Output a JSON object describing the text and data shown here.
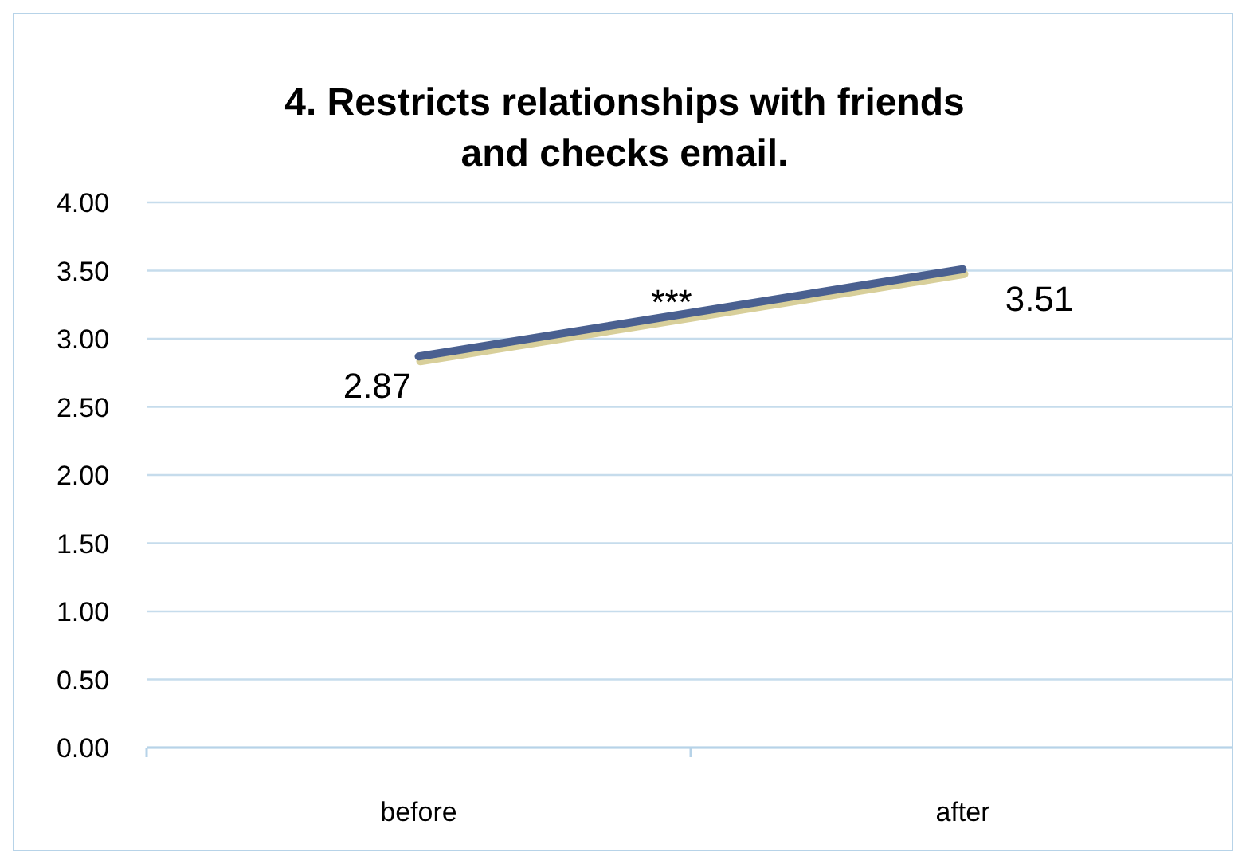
{
  "chart_data": {
    "type": "line",
    "title": "4. Restricts relationships with friends and checks email.",
    "categories": [
      "before",
      "after"
    ],
    "series": [
      {
        "color": "#4a6090",
        "values": [
          2.87,
          3.51
        ]
      }
    ],
    "ylim": [
      0,
      4
    ],
    "yticks": [
      {
        "value": 0,
        "label": "0.00"
      },
      {
        "value": 0.5,
        "label": "0.50"
      },
      {
        "value": 1,
        "label": "1.00"
      },
      {
        "value": 1.5,
        "label": "1.50"
      },
      {
        "value": 2,
        "label": "2.00"
      },
      {
        "value": 2.5,
        "label": "2.50"
      },
      {
        "value": 3,
        "label": "3.00"
      },
      {
        "value": 3.5,
        "label": "3.50"
      },
      {
        "value": 4,
        "label": "4.00"
      }
    ],
    "grid": "y",
    "marker": "none",
    "line_style": "solid",
    "data_labels": true,
    "annotations": [
      "***"
    ]
  }
}
